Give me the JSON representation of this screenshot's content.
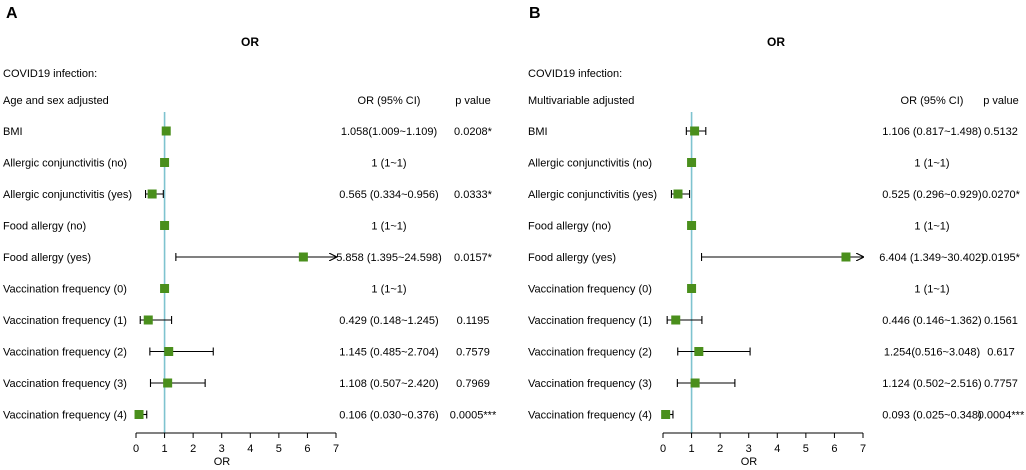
{
  "chart_data": [
    {
      "type": "forest",
      "panel_label": "A",
      "title": "OR",
      "section_label": "COVID19 infection:",
      "adjust_label": "Age and sex adjusted",
      "col_or_header": "OR (95% CI)",
      "col_p_header": "p value",
      "xlabel": "OR",
      "xlim": [
        0,
        7
      ],
      "xticks": [
        "0",
        "1",
        "2",
        "3",
        "4",
        "5",
        "6",
        "7"
      ],
      "reference_line": 1,
      "rows": [
        {
          "label": "BMI",
          "or": 1.058,
          "lo": 1.009,
          "hi": 1.109,
          "or_text": "1.058(1.009~1.109)",
          "p_text": "0.0208*"
        },
        {
          "label": "Allergic conjunctivitis (no)",
          "or": 1,
          "lo": 1,
          "hi": 1,
          "or_text": "1 (1~1)",
          "p_text": ""
        },
        {
          "label": "Allergic conjunctivitis (yes)",
          "or": 0.565,
          "lo": 0.334,
          "hi": 0.956,
          "or_text": "0.565 (0.334~0.956)",
          "p_text": "0.0333*"
        },
        {
          "label": "Food allergy (no)",
          "or": 1,
          "lo": 1,
          "hi": 1,
          "or_text": "1 (1~1)",
          "p_text": ""
        },
        {
          "label": "Food allergy (yes)",
          "or": 5.858,
          "lo": 1.395,
          "hi": 24.598,
          "or_text": "5.858 (1.395~24.598)",
          "p_text": "0.0157*"
        },
        {
          "label": "Vaccination frequency (0)",
          "or": 1,
          "lo": 1,
          "hi": 1,
          "or_text": "1 (1~1)",
          "p_text": ""
        },
        {
          "label": "Vaccination frequency (1)",
          "or": 0.429,
          "lo": 0.148,
          "hi": 1.245,
          "or_text": "0.429 (0.148~1.245)",
          "p_text": "0.1195"
        },
        {
          "label": "Vaccination frequency (2)",
          "or": 1.145,
          "lo": 0.485,
          "hi": 2.704,
          "or_text": "1.145 (0.485~2.704)",
          "p_text": "0.7579"
        },
        {
          "label": "Vaccination frequency (3)",
          "or": 1.108,
          "lo": 0.507,
          "hi": 2.42,
          "or_text": "1.108 (0.507~2.420)",
          "p_text": "0.7969"
        },
        {
          "label": "Vaccination frequency (4)",
          "or": 0.106,
          "lo": 0.03,
          "hi": 0.376,
          "or_text": "0.106 (0.030~0.376)",
          "p_text": "0.0005***"
        }
      ]
    },
    {
      "type": "forest",
      "panel_label": "B",
      "title": "OR",
      "section_label": "COVID19 infection:",
      "adjust_label": "Multivariable adjusted",
      "col_or_header": "OR (95% CI)",
      "col_p_header": "p value",
      "xlabel": "OR",
      "xlim": [
        0,
        7
      ],
      "xticks": [
        "0",
        "1",
        "2",
        "3",
        "4",
        "5",
        "6",
        "7"
      ],
      "reference_line": 1,
      "rows": [
        {
          "label": "BMI",
          "or": 1.106,
          "lo": 0.817,
          "hi": 1.498,
          "or_text": "1.106 (0.817~1.498)",
          "p_text": "0.5132"
        },
        {
          "label": "Allergic conjunctivitis (no)",
          "or": 1,
          "lo": 1,
          "hi": 1,
          "or_text": "1 (1~1)",
          "p_text": ""
        },
        {
          "label": "Allergic conjunctivitis (yes)",
          "or": 0.525,
          "lo": 0.296,
          "hi": 0.929,
          "or_text": "0.525 (0.296~0.929)",
          "p_text": "0.0270*"
        },
        {
          "label": "Food allergy (no)",
          "or": 1,
          "lo": 1,
          "hi": 1,
          "or_text": "1 (1~1)",
          "p_text": ""
        },
        {
          "label": "Food allergy (yes)",
          "or": 6.404,
          "lo": 1.349,
          "hi": 30.402,
          "or_text": "6.404 (1.349~30.402)",
          "p_text": "0.0195*"
        },
        {
          "label": "Vaccination frequency (0)",
          "or": 1,
          "lo": 1,
          "hi": 1,
          "or_text": "1 (1~1)",
          "p_text": ""
        },
        {
          "label": "Vaccination frequency (1)",
          "or": 0.446,
          "lo": 0.146,
          "hi": 1.362,
          "or_text": "0.446 (0.146~1.362)",
          "p_text": "0.1561"
        },
        {
          "label": "Vaccination frequency (2)",
          "or": 1.254,
          "lo": 0.516,
          "hi": 3.048,
          "or_text": "1.254(0.516~3.048)",
          "p_text": "0.617"
        },
        {
          "label": "Vaccination frequency (3)",
          "or": 1.124,
          "lo": 0.502,
          "hi": 2.516,
          "or_text": "1.124 (0.502~2.516)",
          "p_text": "0.7757"
        },
        {
          "label": "Vaccination frequency (4)",
          "or": 0.093,
          "lo": 0.025,
          "hi": 0.348,
          "or_text": "0.093 (0.025~0.348)",
          "p_text": "0.0004***"
        }
      ]
    }
  ]
}
